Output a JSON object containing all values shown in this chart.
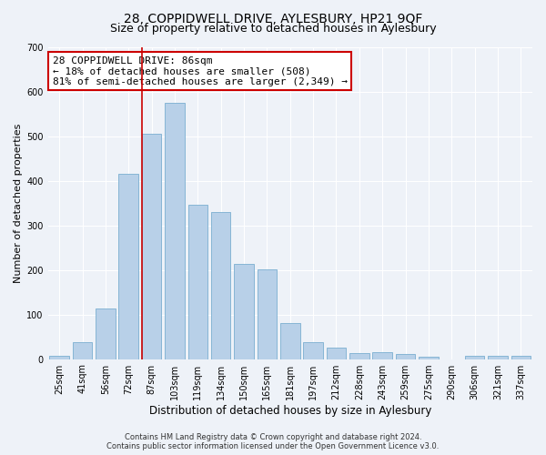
{
  "title": "28, COPPIDWELL DRIVE, AYLESBURY, HP21 9QF",
  "subtitle": "Size of property relative to detached houses in Aylesbury",
  "xlabel": "Distribution of detached houses by size in Aylesbury",
  "ylabel": "Number of detached properties",
  "bar_labels": [
    "25sqm",
    "41sqm",
    "56sqm",
    "72sqm",
    "87sqm",
    "103sqm",
    "119sqm",
    "134sqm",
    "150sqm",
    "165sqm",
    "181sqm",
    "197sqm",
    "212sqm",
    "228sqm",
    "243sqm",
    "259sqm",
    "275sqm",
    "290sqm",
    "306sqm",
    "321sqm",
    "337sqm"
  ],
  "bar_values": [
    8,
    38,
    113,
    415,
    505,
    575,
    346,
    330,
    213,
    201,
    80,
    38,
    25,
    13,
    15,
    12,
    5,
    0,
    7,
    8,
    7
  ],
  "bar_color": "#b8d0e8",
  "bar_edge_color": "#7aaed0",
  "vline_index": 4,
  "vline_color": "#cc0000",
  "ylim": [
    0,
    700
  ],
  "yticks": [
    0,
    100,
    200,
    300,
    400,
    500,
    600,
    700
  ],
  "annotation_title": "28 COPPIDWELL DRIVE: 86sqm",
  "annotation_line1": "← 18% of detached houses are smaller (508)",
  "annotation_line2": "81% of semi-detached houses are larger (2,349) →",
  "annotation_box_color": "#ffffff",
  "annotation_box_edge": "#cc0000",
  "background_color": "#eef2f8",
  "grid_color": "#ffffff",
  "footer1": "Contains HM Land Registry data © Crown copyright and database right 2024.",
  "footer2": "Contains public sector information licensed under the Open Government Licence v3.0.",
  "title_fontsize": 10,
  "subtitle_fontsize": 9,
  "xlabel_fontsize": 8.5,
  "ylabel_fontsize": 8,
  "tick_fontsize": 7,
  "footer_fontsize": 6,
  "annot_fontsize": 8
}
